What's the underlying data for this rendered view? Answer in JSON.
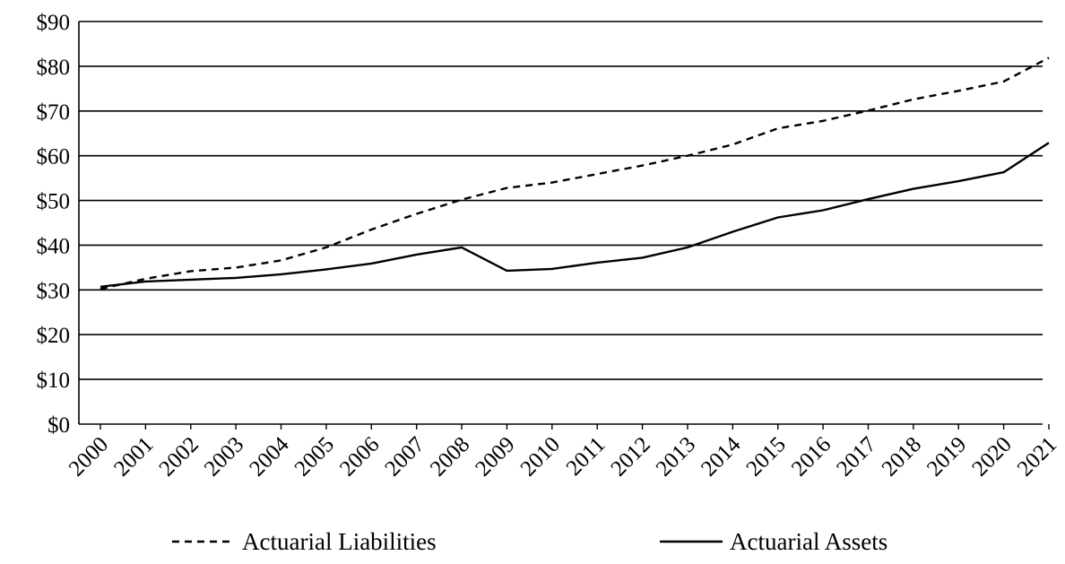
{
  "chart_data": {
    "type": "line",
    "categories": [
      "2000",
      "2001",
      "2002",
      "2003",
      "2004",
      "2005",
      "2006",
      "2007",
      "2008",
      "2009",
      "2010",
      "2011",
      "2012",
      "2013",
      "2014",
      "2015",
      "2016",
      "2017",
      "2018",
      "2019",
      "2020",
      "2021"
    ],
    "y_ticks": [
      "$0",
      "$10",
      "$20",
      "$30",
      "$40",
      "$50",
      "$60",
      "$70",
      "$80",
      "$90"
    ],
    "ylim": [
      0,
      90
    ],
    "grid": true,
    "legend_position": "bottom",
    "series": [
      {
        "name": "Actuarial Liabilities",
        "line_style": "dashed",
        "color": "#000000",
        "values": [
          30.2,
          32.5,
          34.2,
          35.0,
          36.6,
          39.5,
          43.5,
          47.0,
          50.2,
          52.8,
          54.0,
          55.9,
          57.8,
          60.0,
          62.5,
          66.1,
          67.8,
          70.1,
          72.6,
          74.5,
          76.6,
          81.9
        ]
      },
      {
        "name": "Actuarial Assets",
        "line_style": "solid",
        "color": "#000000",
        "values": [
          30.7,
          31.9,
          32.3,
          32.7,
          33.5,
          34.6,
          35.9,
          37.9,
          39.5,
          34.3,
          34.7,
          36.1,
          37.2,
          39.5,
          43.0,
          46.2,
          47.8,
          50.3,
          52.6,
          54.3,
          56.3,
          62.9
        ]
      }
    ]
  }
}
